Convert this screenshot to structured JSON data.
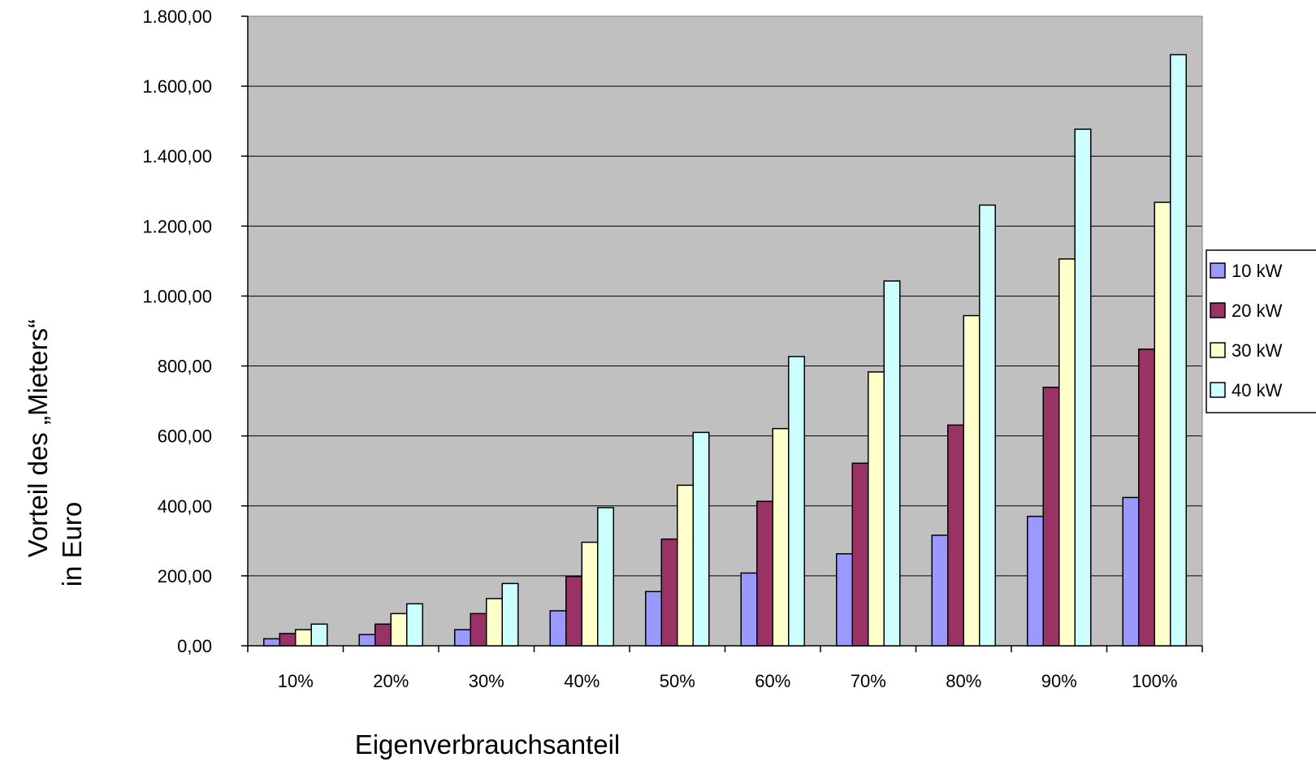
{
  "chart_data": {
    "type": "bar",
    "title": "",
    "xlabel": "Eigenverbrauchsanteil",
    "ylabel_lines": [
      "Vorteil des „Mieters“",
      "in Euro"
    ],
    "categories": [
      "10%",
      "20%",
      "30%",
      "40%",
      "50%",
      "60%",
      "70%",
      "80%",
      "90%",
      "100%"
    ],
    "ylim": [
      0,
      1800
    ],
    "yticks": [
      0,
      200,
      400,
      600,
      800,
      1000,
      1200,
      1400,
      1600,
      1800
    ],
    "ytick_labels": [
      "0,00",
      "200,00",
      "400,00",
      "600,00",
      "800,00",
      "1.000,00",
      "1.200,00",
      "1.400,00",
      "1.600,00",
      "1.800,00"
    ],
    "grid": true,
    "legend_position": "right",
    "plot_background": "#C0C0C0",
    "series": [
      {
        "name": "10 kW",
        "color": "#9999FF",
        "values": [
          20,
          32,
          46,
          100,
          155,
          208,
          263,
          316,
          370,
          424
        ]
      },
      {
        "name": "20 kW",
        "color": "#993366",
        "values": [
          35,
          62,
          92,
          198,
          305,
          413,
          522,
          631,
          739,
          848
        ]
      },
      {
        "name": "30 kW",
        "color": "#FFFFCC",
        "values": [
          46,
          92,
          135,
          296,
          459,
          621,
          783,
          944,
          1106,
          1268
        ]
      },
      {
        "name": "40 kW",
        "color": "#CCFFFF",
        "values": [
          62,
          120,
          178,
          395,
          610,
          827,
          1043,
          1260,
          1477,
          1690
        ]
      }
    ]
  }
}
